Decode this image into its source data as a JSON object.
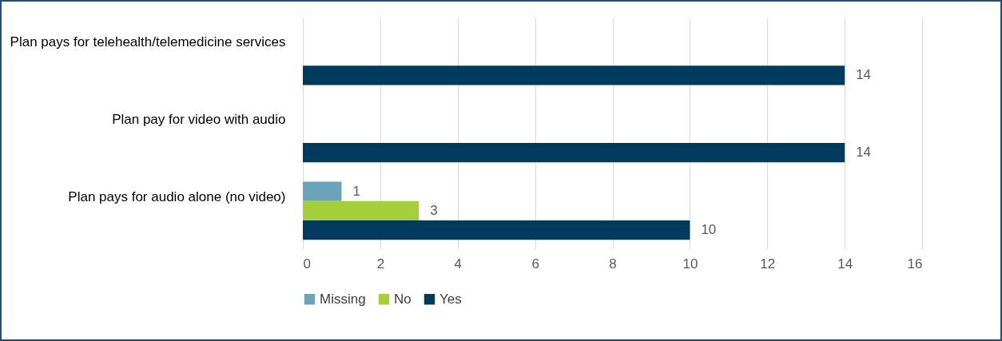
{
  "chart_data": {
    "type": "bar",
    "orientation": "horizontal",
    "categories": [
      "Plan pays for telehealth/telemedicine services",
      "Plan pay for video with audio",
      "Plan pays for audio alone (no video)"
    ],
    "series": [
      {
        "name": "Missing",
        "color": "#6ba3b8",
        "values": [
          null,
          null,
          1
        ]
      },
      {
        "name": "No",
        "color": "#a4cf3a",
        "values": [
          null,
          null,
          3
        ]
      },
      {
        "name": "Yes",
        "color": "#003a5d",
        "values": [
          14,
          14,
          10
        ]
      }
    ],
    "xlim": [
      0,
      16
    ],
    "xticks": [
      0,
      2,
      4,
      6,
      8,
      10,
      12,
      14,
      16
    ],
    "grid": "x",
    "legend": "bottom",
    "data_labels": true
  }
}
